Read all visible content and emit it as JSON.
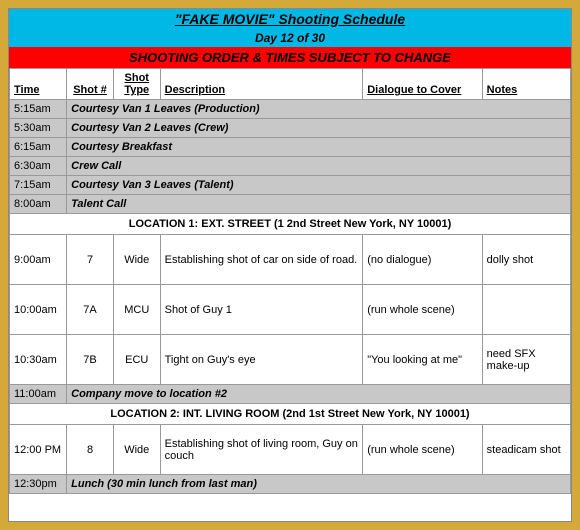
{
  "header": {
    "title": "\"FAKE MOVIE\" Shooting Schedule",
    "day": "Day 12 of 30",
    "warning": "SHOOTING ORDER & TIMES SUBJECT TO CHANGE"
  },
  "columns": {
    "time": "Time",
    "shot": "Shot #",
    "type": "Shot Type",
    "desc": "Description",
    "dialog": "Dialogue to Cover",
    "notes": "Notes"
  },
  "courtesy": [
    {
      "time": "5:15am",
      "text": "Courtesy Van 1 Leaves (Production)"
    },
    {
      "time": "5:30am",
      "text": "Courtesy Van 2 Leaves (Crew)"
    },
    {
      "time": "6:15am",
      "text": "Courtesy Breakfast"
    },
    {
      "time": "6:30am",
      "text": "Crew Call"
    },
    {
      "time": "7:15am",
      "text": "Courtesy Van 3 Leaves (Talent)"
    },
    {
      "time": "8:00am",
      "text": "Talent Call"
    }
  ],
  "loc1": {
    "header": "LOCATION 1: EXT. STREET (1 2nd Street New York, NY 10001)",
    "shots": [
      {
        "time": "9:00am",
        "num": "7",
        "type": "Wide",
        "desc": "Establishing shot of car on side of road.",
        "dialog": "(no dialogue)",
        "notes": "dolly shot"
      },
      {
        "time": "10:00am",
        "num": "7A",
        "type": "MCU",
        "desc": "Shot of Guy 1",
        "dialog": "(run whole scene)",
        "notes": ""
      },
      {
        "time": "10:30am",
        "num": "7B",
        "type": "ECU",
        "desc": "Tight on Guy's eye",
        "dialog": "\"You looking at me\"",
        "notes": "need SFX make-up"
      }
    ]
  },
  "move": {
    "time": "11:00am",
    "text": "Company move to location #2"
  },
  "loc2": {
    "header": "LOCATION 2: INT. LIVING ROOM (2nd 1st Street New York, NY 10001)",
    "shots": [
      {
        "time": "12:00 PM",
        "num": "8",
        "type": "Wide",
        "desc": "Establishing shot of living room, Guy on couch",
        "dialog": "(run whole scene)",
        "notes": "steadicam shot"
      }
    ]
  },
  "lunch": {
    "time": "12:30pm",
    "text": "Lunch (30 min lunch from last man)"
  },
  "colors": {
    "header_bg": "#00b8e6",
    "warning_bg": "#ff0000",
    "courtesy_bg": "#c8c8c8",
    "border": "#999999",
    "page_bg": "#d4a93a"
  }
}
